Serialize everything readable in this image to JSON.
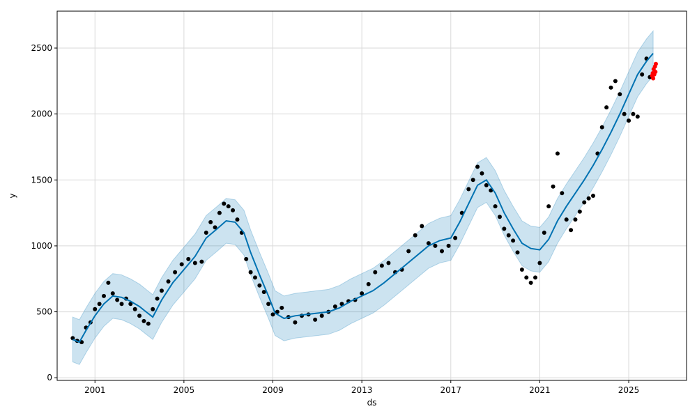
{
  "chart_data": {
    "type": "scatter",
    "title": "",
    "xlabel": "ds",
    "ylabel": "y",
    "xlim": [
      1999.3,
      2027.6
    ],
    "ylim": [
      -20,
      2780
    ],
    "grid": true,
    "colors": {
      "observed": "#000000",
      "forecast_line": "#0072B2",
      "uncertainty_band": "#0072B2",
      "holdout": "#ff0000",
      "grid": "#d9d9d9"
    },
    "x_ticks": [
      {
        "value": 2001,
        "label": "2001"
      },
      {
        "value": 2005,
        "label": "2005"
      },
      {
        "value": 2009,
        "label": "2009"
      },
      {
        "value": 2013,
        "label": "2013"
      },
      {
        "value": 2017,
        "label": "2017"
      },
      {
        "value": 2021,
        "label": "2021"
      },
      {
        "value": 2025,
        "label": "2025"
      }
    ],
    "y_ticks": [
      {
        "value": 0,
        "label": "0"
      },
      {
        "value": 500,
        "label": "500"
      },
      {
        "value": 1000,
        "label": "1000"
      },
      {
        "value": 1500,
        "label": "1500"
      },
      {
        "value": 2000,
        "label": "2000"
      },
      {
        "value": 2500,
        "label": "2500"
      }
    ],
    "forecast": {
      "x": [
        2000.0,
        2000.3,
        2000.6,
        2001.0,
        2001.4,
        2001.8,
        2002.2,
        2002.6,
        2003.0,
        2003.3,
        2003.6,
        2004.0,
        2004.5,
        2005.0,
        2005.5,
        2006.0,
        2006.5,
        2006.9,
        2007.3,
        2007.7,
        2008.0,
        2008.4,
        2008.8,
        2009.1,
        2009.5,
        2010.0,
        2010.5,
        2011.0,
        2011.5,
        2012.0,
        2012.5,
        2013.0,
        2013.5,
        2014.0,
        2014.5,
        2015.0,
        2015.5,
        2016.0,
        2016.5,
        2017.0,
        2017.4,
        2017.8,
        2018.2,
        2018.6,
        2019.0,
        2019.4,
        2019.8,
        2020.2,
        2020.6,
        2021.0,
        2021.4,
        2021.8,
        2022.2,
        2022.6,
        2023.0,
        2023.4,
        2023.8,
        2024.2,
        2024.6,
        2025.0,
        2025.4,
        2025.8,
        2026.0,
        2026.1
      ],
      "y": [
        290,
        270,
        360,
        470,
        560,
        620,
        610,
        580,
        540,
        500,
        460,
        590,
        720,
        820,
        920,
        1060,
        1130,
        1190,
        1180,
        1100,
        950,
        780,
        620,
        490,
        450,
        470,
        480,
        490,
        500,
        530,
        580,
        620,
        660,
        720,
        790,
        860,
        930,
        1000,
        1040,
        1060,
        1180,
        1320,
        1460,
        1500,
        1400,
        1250,
        1130,
        1020,
        980,
        970,
        1050,
        1190,
        1300,
        1400,
        1500,
        1610,
        1730,
        1860,
        2000,
        2150,
        2300,
        2400,
        2440,
        2460
      ],
      "band_halfwidth": 170
    },
    "observed": {
      "x": [
        2000.0,
        2000.2,
        2000.4,
        2000.6,
        2000.8,
        2001.0,
        2001.2,
        2001.4,
        2001.6,
        2001.8,
        2002.0,
        2002.2,
        2002.4,
        2002.6,
        2002.8,
        2003.0,
        2003.2,
        2003.4,
        2003.6,
        2003.8,
        2004.0,
        2004.3,
        2004.6,
        2004.9,
        2005.2,
        2005.5,
        2005.8,
        2006.0,
        2006.2,
        2006.4,
        2006.6,
        2006.8,
        2007.0,
        2007.2,
        2007.4,
        2007.6,
        2007.8,
        2008.0,
        2008.2,
        2008.4,
        2008.6,
        2008.8,
        2009.0,
        2009.2,
        2009.4,
        2009.7,
        2010.0,
        2010.3,
        2010.6,
        2010.9,
        2011.2,
        2011.5,
        2011.8,
        2012.1,
        2012.4,
        2012.7,
        2013.0,
        2013.3,
        2013.6,
        2013.9,
        2014.2,
        2014.5,
        2014.8,
        2015.1,
        2015.4,
        2015.7,
        2016.0,
        2016.3,
        2016.6,
        2016.9,
        2017.2,
        2017.5,
        2017.8,
        2018.0,
        2018.2,
        2018.4,
        2018.6,
        2018.8,
        2019.0,
        2019.2,
        2019.4,
        2019.6,
        2019.8,
        2020.0,
        2020.2,
        2020.4,
        2020.6,
        2020.8,
        2021.0,
        2021.2,
        2021.4,
        2021.6,
        2021.8,
        2022.0,
        2022.2,
        2022.4,
        2022.6,
        2022.8,
        2023.0,
        2023.2,
        2023.4,
        2023.6,
        2023.8,
        2024.0,
        2024.2,
        2024.4,
        2024.6,
        2024.8,
        2025.0,
        2025.2,
        2025.4,
        2025.6,
        2025.8,
        2025.95
      ],
      "y": [
        300,
        280,
        270,
        380,
        420,
        520,
        560,
        620,
        720,
        640,
        590,
        560,
        600,
        560,
        520,
        470,
        430,
        410,
        520,
        600,
        660,
        730,
        800,
        860,
        900,
        870,
        880,
        1100,
        1180,
        1140,
        1250,
        1320,
        1300,
        1270,
        1200,
        1100,
        900,
        800,
        760,
        700,
        650,
        560,
        480,
        500,
        530,
        460,
        420,
        470,
        480,
        440,
        470,
        500,
        540,
        560,
        580,
        590,
        640,
        710,
        800,
        850,
        870,
        800,
        820,
        960,
        1080,
        1150,
        1020,
        1000,
        960,
        1000,
        1060,
        1250,
        1430,
        1500,
        1600,
        1550,
        1460,
        1420,
        1300,
        1220,
        1130,
        1080,
        1040,
        950,
        820,
        760,
        720,
        760,
        870,
        1100,
        1300,
        1450,
        1700,
        1400,
        1200,
        1120,
        1200,
        1260,
        1330,
        1360,
        1380,
        1700,
        1900,
        2050,
        2200,
        2250,
        2150,
        2000,
        1950,
        2000,
        1980,
        2300,
        2420,
        2280
      ]
    },
    "holdout": {
      "x": [
        2026.05,
        2026.08,
        2026.1,
        2026.12,
        2026.15,
        2026.18,
        2026.2,
        2026.22
      ],
      "y": [
        2290,
        2310,
        2270,
        2340,
        2300,
        2360,
        2320,
        2380
      ]
    }
  }
}
